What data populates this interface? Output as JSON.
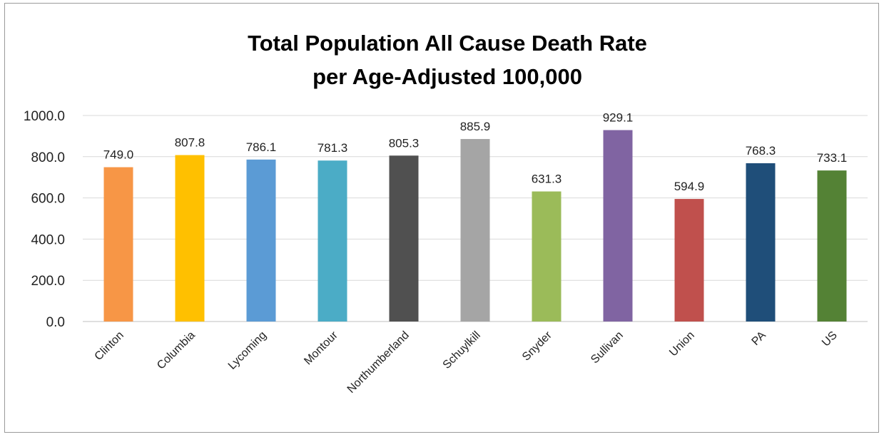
{
  "chart_data": {
    "type": "bar",
    "title": [
      "Total Population All Cause Death Rate",
      "per Age-Adjusted 100,000"
    ],
    "categories": [
      "Clinton",
      "Columbia",
      "Lycoming",
      "Montour",
      "Northumberland",
      "Schuylkill",
      "Snyder",
      "Sullivan",
      "Union",
      "PA",
      "US"
    ],
    "values": [
      749.0,
      807.8,
      786.1,
      781.3,
      805.3,
      885.9,
      631.3,
      929.1,
      594.9,
      768.3,
      733.1
    ],
    "value_labels": [
      "749.0",
      "807.8",
      "786.1",
      "781.3",
      "805.3",
      "885.9",
      "631.3",
      "929.1",
      "594.9",
      "768.3",
      "733.1"
    ],
    "colors": [
      "#F79646",
      "#FFC000",
      "#5B9BD5",
      "#4BACC6",
      "#505050",
      "#A5A5A5",
      "#9BBB59",
      "#8064A2",
      "#C0504D",
      "#1F4E79",
      "#548235"
    ],
    "yticks": [
      "0.0",
      "200.0",
      "400.0",
      "600.0",
      "800.0",
      "1000.0"
    ],
    "ylim": [
      0,
      1000
    ],
    "xlabel": "",
    "ylabel": "",
    "grid": true,
    "legend": "none"
  }
}
